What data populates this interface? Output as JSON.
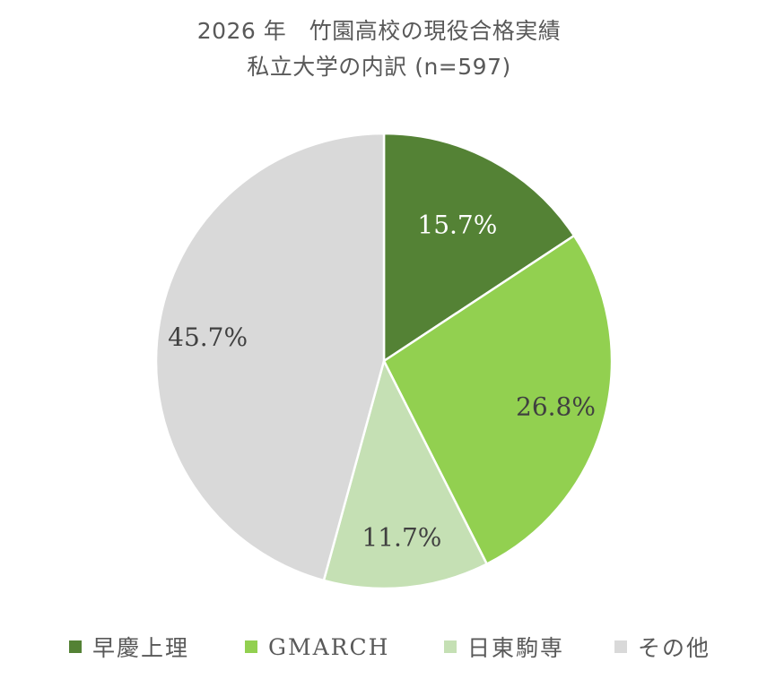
{
  "chart_data": {
    "type": "pie",
    "title": "2026 年　竹園高校の現役合格実績",
    "subtitle": "私立大学の内訳 (n=597)",
    "start_angle_deg": 0,
    "direction": "clockwise",
    "legend_position": "bottom",
    "slices": [
      {
        "name": "早慶上理",
        "value": 15.7,
        "label": "15.7%",
        "color": "#548235"
      },
      {
        "name": "GMARCH",
        "value": 26.8,
        "label": "26.8%",
        "color": "#92D050"
      },
      {
        "name": "日東駒専",
        "value": 11.7,
        "label": "11.7%",
        "color": "#C5E0B4"
      },
      {
        "name": "その他",
        "value": 45.7,
        "label": "45.7%",
        "color": "#D9D9D9"
      }
    ]
  }
}
